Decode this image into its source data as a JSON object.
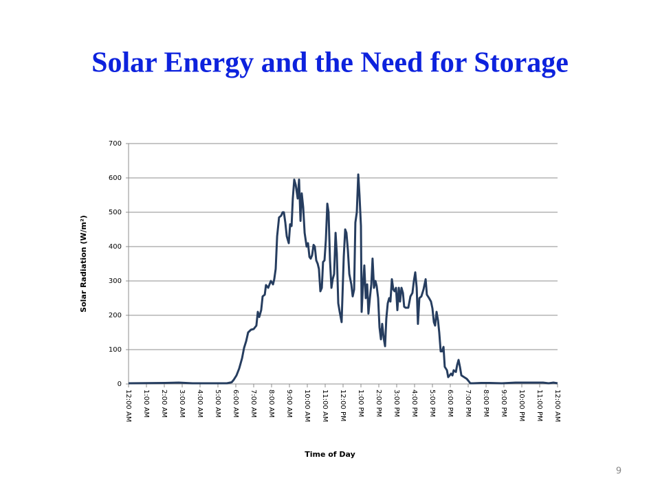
{
  "page_number": "9",
  "chart_data": {
    "type": "line",
    "title": "Solar Energy and the Need for Storage",
    "x_label": "Time of Day",
    "y_label": "Solar Radiation (W/m²)",
    "xlim": [
      0,
      24
    ],
    "ylim": [
      0,
      700
    ],
    "yticks": [
      0,
      100,
      200,
      300,
      400,
      500,
      600,
      700
    ],
    "grid": true,
    "xticks": [
      {
        "value": 0,
        "label": "12:00 AM"
      },
      {
        "value": 1,
        "label": "1:00 AM"
      },
      {
        "value": 2,
        "label": "2:00 AM"
      },
      {
        "value": 3,
        "label": "3:00 AM"
      },
      {
        "value": 4,
        "label": "4:00 AM"
      },
      {
        "value": 5,
        "label": "5:00 AM"
      },
      {
        "value": 6,
        "label": "6:00 AM"
      },
      {
        "value": 7,
        "label": "7:00 AM"
      },
      {
        "value": 8,
        "label": "8:00 AM"
      },
      {
        "value": 9,
        "label": "9:00 AM"
      },
      {
        "value": 10,
        "label": "10:00 AM"
      },
      {
        "value": 11,
        "label": "11:00 AM"
      },
      {
        "value": 12,
        "label": "12:00 PM"
      },
      {
        "value": 13,
        "label": "1:00 PM"
      },
      {
        "value": 14,
        "label": "2:00 PM"
      },
      {
        "value": 15,
        "label": "3:00 PM"
      },
      {
        "value": 16,
        "label": "4:00 PM"
      },
      {
        "value": 17,
        "label": "5:00 PM"
      },
      {
        "value": 18,
        "label": "6:00 PM"
      },
      {
        "value": 19,
        "label": "7:00 PM"
      },
      {
        "value": 20,
        "label": "8:00 PM"
      },
      {
        "value": 21,
        "label": "9:00 PM"
      },
      {
        "value": 22,
        "label": "10:00 PM"
      },
      {
        "value": 23,
        "label": "11:00 PM"
      },
      {
        "value": 24,
        "label": "12:00 AM"
      }
    ],
    "series": [
      {
        "color": "#263d5f",
        "x": [
          0,
          2.04,
          2.81,
          3.58,
          5.5,
          5.77,
          5.88,
          6.04,
          6.19,
          6.35,
          6.46,
          6.58,
          6.69,
          6.85,
          7.0,
          7.15,
          7.23,
          7.31,
          7.42,
          7.5,
          7.62,
          7.69,
          7.81,
          7.96,
          8.08,
          8.15,
          8.23,
          8.31,
          8.42,
          8.54,
          8.62,
          8.69,
          8.77,
          8.85,
          8.96,
          9.04,
          9.12,
          9.19,
          9.27,
          9.35,
          9.46,
          9.54,
          9.62,
          9.69,
          9.77,
          9.85,
          9.96,
          10.04,
          10.12,
          10.19,
          10.27,
          10.35,
          10.42,
          10.5,
          10.58,
          10.65,
          10.73,
          10.81,
          10.88,
          10.96,
          11.04,
          11.12,
          11.19,
          11.27,
          11.35,
          11.42,
          11.5,
          11.58,
          11.65,
          11.73,
          11.81,
          11.92,
          12.04,
          12.12,
          12.19,
          12.27,
          12.35,
          12.46,
          12.54,
          12.62,
          12.69,
          12.77,
          12.85,
          12.92,
          13.0,
          13.04,
          13.12,
          13.19,
          13.27,
          13.35,
          13.42,
          13.5,
          13.58,
          13.65,
          13.73,
          13.81,
          13.88,
          13.96,
          14.04,
          14.12,
          14.19,
          14.27,
          14.35,
          14.42,
          14.5,
          14.58,
          14.65,
          14.73,
          14.81,
          14.88,
          14.96,
          15.04,
          15.12,
          15.19,
          15.27,
          15.35,
          15.42,
          15.5,
          15.65,
          15.77,
          15.88,
          15.96,
          16.04,
          16.12,
          16.19,
          16.27,
          16.38,
          16.5,
          16.62,
          16.69,
          16.81,
          16.92,
          17.0,
          17.08,
          17.15,
          17.23,
          17.31,
          17.38,
          17.46,
          17.54,
          17.62,
          17.69,
          17.81,
          17.88,
          17.96,
          18.04,
          18.12,
          18.19,
          18.31,
          18.38,
          18.46,
          18.54,
          18.62,
          18.77,
          18.92,
          19.0,
          19.12,
          19.27,
          19.73,
          20.19,
          20.88,
          21.65,
          23.19,
          23.5,
          23.77,
          24
        ],
        "values": [
          2,
          3,
          4,
          2,
          2,
          5,
          12,
          25,
          45,
          75,
          105,
          125,
          150,
          158,
          160,
          170,
          210,
          195,
          215,
          255,
          260,
          288,
          280,
          300,
          290,
          305,
          335,
          430,
          485,
          490,
          500,
          500,
          470,
          430,
          410,
          465,
          460,
          540,
          595,
          580,
          540,
          595,
          475,
          555,
          515,
          440,
          400,
          410,
          370,
          365,
          375,
          405,
          400,
          360,
          350,
          335,
          270,
          280,
          355,
          360,
          420,
          525,
          500,
          360,
          280,
          305,
          320,
          440,
          380,
          235,
          210,
          180,
          370,
          450,
          440,
          390,
          320,
          290,
          255,
          275,
          470,
          500,
          610,
          550,
          460,
          210,
          290,
          345,
          250,
          290,
          205,
          250,
          290,
          365,
          280,
          300,
          285,
          250,
          165,
          130,
          175,
          135,
          110,
          190,
          235,
          250,
          240,
          305,
          275,
          270,
          280,
          215,
          280,
          240,
          280,
          265,
          225,
          222,
          222,
          255,
          265,
          300,
          325,
          280,
          175,
          250,
          255,
          275,
          305,
          260,
          250,
          240,
          220,
          180,
          170,
          210,
          185,
          150,
          95,
          95,
          108,
          50,
          40,
          20,
          25,
          30,
          25,
          40,
          35,
          55,
          70,
          50,
          25,
          20,
          15,
          10,
          2,
          2,
          3,
          3,
          2,
          4,
          4,
          2,
          4,
          2
        ]
      }
    ]
  }
}
